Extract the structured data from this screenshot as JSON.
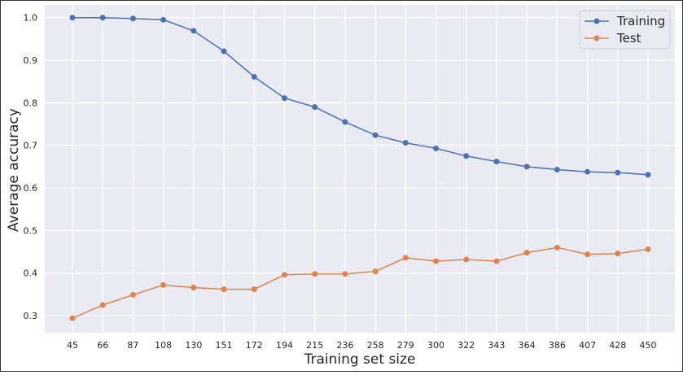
{
  "chart_data": {
    "type": "line",
    "xlabel": "Training set size",
    "ylabel": "Average accuracy",
    "categories": [
      "45",
      "66",
      "87",
      "108",
      "130",
      "151",
      "172",
      "194",
      "215",
      "236",
      "258",
      "279",
      "300",
      "322",
      "343",
      "364",
      "386",
      "407",
      "428",
      "450"
    ],
    "ylim": [
      0.26,
      1.03
    ],
    "yticks": [
      "0.3",
      "0.4",
      "0.5",
      "0.6",
      "0.7",
      "0.8",
      "0.9",
      "1.0"
    ],
    "grid": true,
    "legend_position": "top-right",
    "series": [
      {
        "name": "Training",
        "color": "#4c72b0",
        "values": [
          1.0,
          1.0,
          0.998,
          0.995,
          0.969,
          0.921,
          0.861,
          0.811,
          0.79,
          0.755,
          0.724,
          0.706,
          0.693,
          0.675,
          0.662,
          0.65,
          0.643,
          0.638,
          0.636,
          0.631
        ]
      },
      {
        "name": "Test",
        "color": "#dd8452",
        "values": [
          0.294,
          0.325,
          0.349,
          0.372,
          0.366,
          0.362,
          0.362,
          0.396,
          0.398,
          0.398,
          0.404,
          0.436,
          0.428,
          0.432,
          0.428,
          0.448,
          0.46,
          0.444,
          0.446,
          0.456
        ]
      }
    ]
  }
}
